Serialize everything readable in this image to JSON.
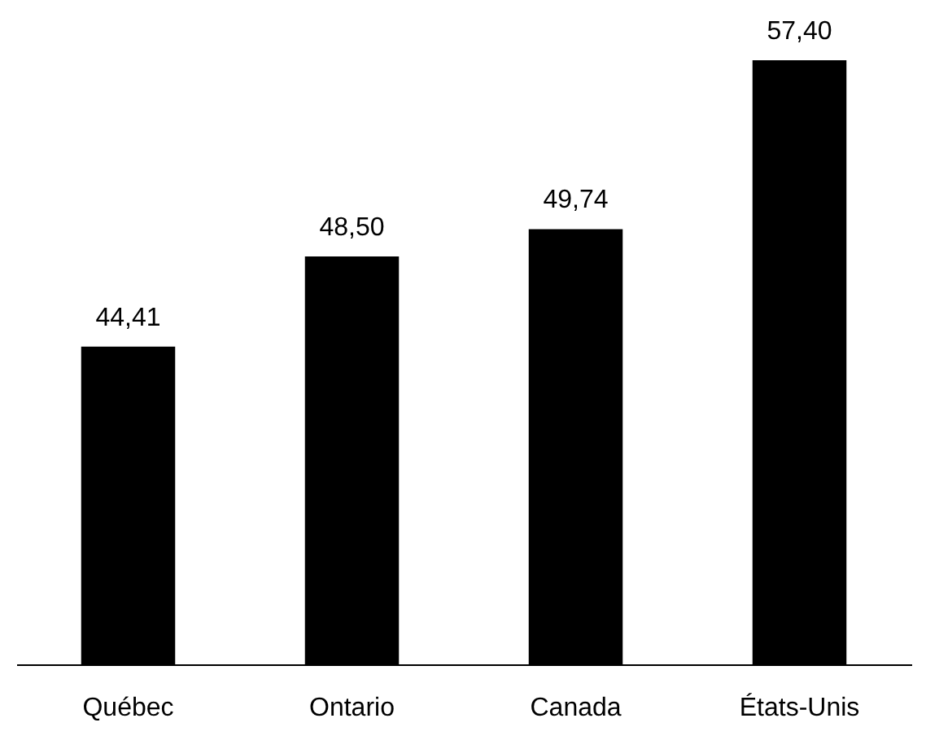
{
  "chart_data": {
    "type": "bar",
    "categories": [
      "Québec",
      "Ontario",
      "Canada",
      "États-Unis"
    ],
    "values": [
      44.41,
      48.5,
      49.74,
      57.4
    ],
    "value_labels": [
      "44,41",
      "48,50",
      "49,74",
      "57,40"
    ],
    "color": "#000000",
    "ylim": [
      30,
      57.4
    ],
    "tick_labels": "x",
    "grid": false
  }
}
